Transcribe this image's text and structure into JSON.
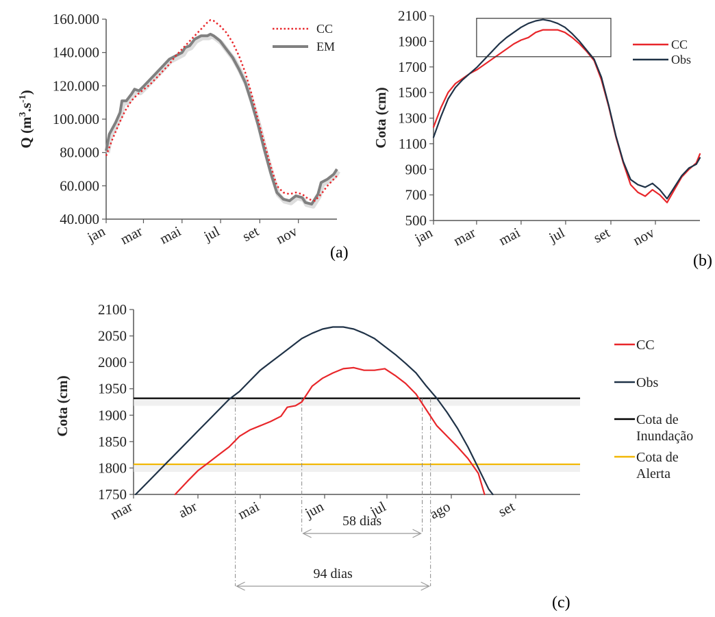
{
  "chart_data": [
    {
      "id": "a",
      "type": "line",
      "panel_label": "(a)",
      "ylabel": "Q (m³.s⁻¹)",
      "ylim": [
        40000,
        160000
      ],
      "yticks": [
        40000,
        60000,
        80000,
        100000,
        120000,
        140000,
        160000
      ],
      "ytick_labels": [
        "40.000",
        "60.000",
        "80.000",
        "100.000",
        "120.000",
        "140.000",
        "160.000"
      ],
      "xlim": [
        0,
        365
      ],
      "xticks": [
        0,
        59,
        120,
        181,
        243,
        304
      ],
      "xtick_labels": [
        "jan",
        "mar",
        "mai",
        "jul",
        "set",
        "nov"
      ],
      "legend_position": "top-right",
      "series": [
        {
          "name": "CC",
          "color": "#e8262a",
          "style": "dotted",
          "points": [
            [
              0,
              78000
            ],
            [
              10,
              88000
            ],
            [
              20,
              97000
            ],
            [
              30,
              105000
            ],
            [
              40,
              111000
            ],
            [
              50,
              115000
            ],
            [
              60,
              118000
            ],
            [
              70,
              121000
            ],
            [
              80,
              125000
            ],
            [
              90,
              129000
            ],
            [
              100,
              133000
            ],
            [
              110,
              138000
            ],
            [
              120,
              142000
            ],
            [
              130,
              146000
            ],
            [
              140,
              150000
            ],
            [
              150,
              154000
            ],
            [
              160,
              158000
            ],
            [
              165,
              159500
            ],
            [
              170,
              159000
            ],
            [
              180,
              156000
            ],
            [
              190,
              152000
            ],
            [
              200,
              146000
            ],
            [
              210,
              138000
            ],
            [
              220,
              128000
            ],
            [
              230,
              115000
            ],
            [
              240,
              100000
            ],
            [
              250,
              86000
            ],
            [
              260,
              72000
            ],
            [
              270,
              60000
            ],
            [
              280,
              56000
            ],
            [
              290,
              55000
            ],
            [
              300,
              56000
            ],
            [
              310,
              55000
            ],
            [
              320,
              52000
            ],
            [
              330,
              51000
            ],
            [
              340,
              55000
            ],
            [
              350,
              60000
            ],
            [
              365,
              66000
            ]
          ]
        },
        {
          "name": "EM",
          "color": "#808080",
          "style": "solid",
          "points": [
            [
              0,
              81000
            ],
            [
              5,
              91000
            ],
            [
              15,
              98000
            ],
            [
              22,
              104000
            ],
            [
              25,
              111000
            ],
            [
              32,
              111000
            ],
            [
              40,
              115000
            ],
            [
              45,
              118000
            ],
            [
              52,
              117000
            ],
            [
              60,
              120000
            ],
            [
              70,
              124000
            ],
            [
              80,
              128000
            ],
            [
              90,
              132000
            ],
            [
              100,
              136000
            ],
            [
              110,
              138000
            ],
            [
              120,
              140000
            ],
            [
              125,
              143000
            ],
            [
              132,
              144000
            ],
            [
              140,
              148000
            ],
            [
              150,
              150000
            ],
            [
              160,
              150000
            ],
            [
              165,
              151000
            ],
            [
              170,
              150000
            ],
            [
              180,
              147000
            ],
            [
              190,
              142000
            ],
            [
              200,
              137000
            ],
            [
              210,
              130000
            ],
            [
              220,
              122000
            ],
            [
              230,
              110000
            ],
            [
              240,
              97000
            ],
            [
              250,
              82000
            ],
            [
              260,
              68000
            ],
            [
              270,
              56000
            ],
            [
              280,
              52000
            ],
            [
              290,
              51000
            ],
            [
              300,
              54000
            ],
            [
              310,
              53000
            ],
            [
              315,
              50000
            ],
            [
              325,
              49000
            ],
            [
              335,
              55000
            ],
            [
              340,
              62000
            ],
            [
              350,
              64000
            ],
            [
              360,
              67000
            ],
            [
              365,
              70000
            ]
          ]
        }
      ]
    },
    {
      "id": "b",
      "type": "line",
      "panel_label": "(b)",
      "ylabel": "Cota (cm)",
      "ylim": [
        500,
        2100
      ],
      "yticks": [
        500,
        700,
        900,
        1100,
        1300,
        1500,
        1700,
        1900,
        2100
      ],
      "ytick_labels": [
        "500",
        "700",
        "900",
        "1100",
        "1300",
        "1500",
        "1700",
        "1900",
        "2100"
      ],
      "xlim": [
        0,
        365
      ],
      "xticks": [
        0,
        59,
        120,
        181,
        243,
        304
      ],
      "xtick_labels": [
        "jan",
        "mar",
        "mai",
        "jul",
        "set",
        "nov"
      ],
      "legend_position": "right",
      "zoom_box": {
        "x": [
          59,
          243
        ],
        "y": [
          1780,
          2080
        ]
      },
      "series": [
        {
          "name": "CC",
          "color": "#e8262a",
          "style": "solid",
          "points": [
            [
              0,
              1230
            ],
            [
              10,
              1380
            ],
            [
              20,
              1500
            ],
            [
              30,
              1570
            ],
            [
              40,
              1610
            ],
            [
              50,
              1650
            ],
            [
              60,
              1680
            ],
            [
              70,
              1720
            ],
            [
              80,
              1760
            ],
            [
              90,
              1800
            ],
            [
              100,
              1840
            ],
            [
              110,
              1880
            ],
            [
              120,
              1910
            ],
            [
              130,
              1930
            ],
            [
              140,
              1970
            ],
            [
              150,
              1990
            ],
            [
              160,
              1990
            ],
            [
              170,
              1990
            ],
            [
              180,
              1970
            ],
            [
              190,
              1930
            ],
            [
              200,
              1880
            ],
            [
              210,
              1820
            ],
            [
              220,
              1750
            ],
            [
              230,
              1600
            ],
            [
              240,
              1390
            ],
            [
              250,
              1150
            ],
            [
              260,
              950
            ],
            [
              270,
              780
            ],
            [
              280,
              720
            ],
            [
              290,
              690
            ],
            [
              300,
              740
            ],
            [
              310,
              700
            ],
            [
              320,
              640
            ],
            [
              330,
              740
            ],
            [
              340,
              840
            ],
            [
              350,
              900
            ],
            [
              360,
              950
            ],
            [
              365,
              1020
            ]
          ]
        },
        {
          "name": "Obs",
          "color": "#1f3247",
          "style": "solid",
          "points": [
            [
              0,
              1150
            ],
            [
              10,
              1310
            ],
            [
              20,
              1450
            ],
            [
              30,
              1540
            ],
            [
              40,
              1600
            ],
            [
              50,
              1650
            ],
            [
              60,
              1700
            ],
            [
              70,
              1760
            ],
            [
              80,
              1820
            ],
            [
              90,
              1880
            ],
            [
              100,
              1930
            ],
            [
              110,
              1970
            ],
            [
              120,
              2010
            ],
            [
              130,
              2040
            ],
            [
              140,
              2060
            ],
            [
              150,
              2070
            ],
            [
              160,
              2060
            ],
            [
              170,
              2040
            ],
            [
              180,
              2010
            ],
            [
              190,
              1960
            ],
            [
              200,
              1900
            ],
            [
              210,
              1830
            ],
            [
              220,
              1760
            ],
            [
              230,
              1620
            ],
            [
              240,
              1400
            ],
            [
              250,
              1160
            ],
            [
              260,
              960
            ],
            [
              270,
              820
            ],
            [
              280,
              780
            ],
            [
              290,
              760
            ],
            [
              300,
              790
            ],
            [
              310,
              740
            ],
            [
              320,
              670
            ],
            [
              330,
              760
            ],
            [
              340,
              850
            ],
            [
              350,
              910
            ],
            [
              360,
              940
            ],
            [
              365,
              990
            ]
          ]
        }
      ]
    },
    {
      "id": "c",
      "type": "line",
      "panel_label": "(c)",
      "ylabel": "Cota (cm)",
      "ylim": [
        1750,
        2100
      ],
      "yticks": [
        1750,
        1800,
        1850,
        1900,
        1950,
        2000,
        2050,
        2100
      ],
      "ytick_labels": [
        "1750",
        "1800",
        "1850",
        "1900",
        "1950",
        "2000",
        "2050",
        "2100"
      ],
      "xlim": [
        59,
        274
      ],
      "xticks": [
        59,
        90,
        120,
        151,
        181,
        212,
        243
      ],
      "xtick_labels": [
        "mar",
        "abr",
        "mai",
        "jun",
        "jul",
        "ago",
        "set"
      ],
      "legend_position": "right",
      "legend": [
        "CC",
        "Obs",
        "Cota de Inundação",
        "Cota de Alerta"
      ],
      "hlines": [
        {
          "name": "Cota de Inundação",
          "y": 1932,
          "color": "#000000"
        },
        {
          "name": "Cota de Alerta",
          "y": 1807,
          "color": "#f2b705"
        }
      ],
      "series": [
        {
          "name": "CC",
          "color": "#e8262a",
          "style": "solid",
          "points": [
            [
              79,
              1750
            ],
            [
              85,
              1775
            ],
            [
              90,
              1795
            ],
            [
              95,
              1810
            ],
            [
              100,
              1825
            ],
            [
              105,
              1840
            ],
            [
              110,
              1860
            ],
            [
              115,
              1872
            ],
            [
              120,
              1880
            ],
            [
              125,
              1888
            ],
            [
              130,
              1898
            ],
            [
              133,
              1915
            ],
            [
              137,
              1918
            ],
            [
              140,
              1925
            ],
            [
              145,
              1955
            ],
            [
              150,
              1970
            ],
            [
              155,
              1980
            ],
            [
              160,
              1988
            ],
            [
              165,
              1990
            ],
            [
              170,
              1985
            ],
            [
              175,
              1985
            ],
            [
              180,
              1988
            ],
            [
              185,
              1975
            ],
            [
              190,
              1960
            ],
            [
              195,
              1940
            ],
            [
              200,
              1910
            ],
            [
              205,
              1880
            ],
            [
              210,
              1860
            ],
            [
              215,
              1840
            ],
            [
              220,
              1818
            ],
            [
              225,
              1790
            ],
            [
              228,
              1750
            ]
          ]
        },
        {
          "name": "Obs",
          "color": "#1f3247",
          "style": "solid",
          "points": [
            [
              60,
              1750
            ],
            [
              65,
              1770
            ],
            [
              70,
              1790
            ],
            [
              75,
              1810
            ],
            [
              80,
              1830
            ],
            [
              85,
              1850
            ],
            [
              90,
              1870
            ],
            [
              95,
              1890
            ],
            [
              100,
              1910
            ],
            [
              105,
              1930
            ],
            [
              110,
              1945
            ],
            [
              115,
              1965
            ],
            [
              120,
              1985
            ],
            [
              125,
              2000
            ],
            [
              130,
              2015
            ],
            [
              135,
              2030
            ],
            [
              140,
              2045
            ],
            [
              145,
              2055
            ],
            [
              150,
              2063
            ],
            [
              155,
              2067
            ],
            [
              160,
              2067
            ],
            [
              165,
              2063
            ],
            [
              170,
              2055
            ],
            [
              175,
              2045
            ],
            [
              180,
              2030
            ],
            [
              185,
              2015
            ],
            [
              190,
              1998
            ],
            [
              195,
              1980
            ],
            [
              200,
              1955
            ],
            [
              205,
              1932
            ],
            [
              210,
              1905
            ],
            [
              215,
              1875
            ],
            [
              220,
              1840
            ],
            [
              225,
              1800
            ],
            [
              230,
              1760
            ],
            [
              232,
              1750
            ]
          ]
        }
      ],
      "annotations": [
        {
          "label": "58 dias",
          "x_start": 140,
          "x_end": 198
        },
        {
          "label": "94 dias",
          "x_start": 108,
          "x_end": 202
        }
      ]
    }
  ]
}
